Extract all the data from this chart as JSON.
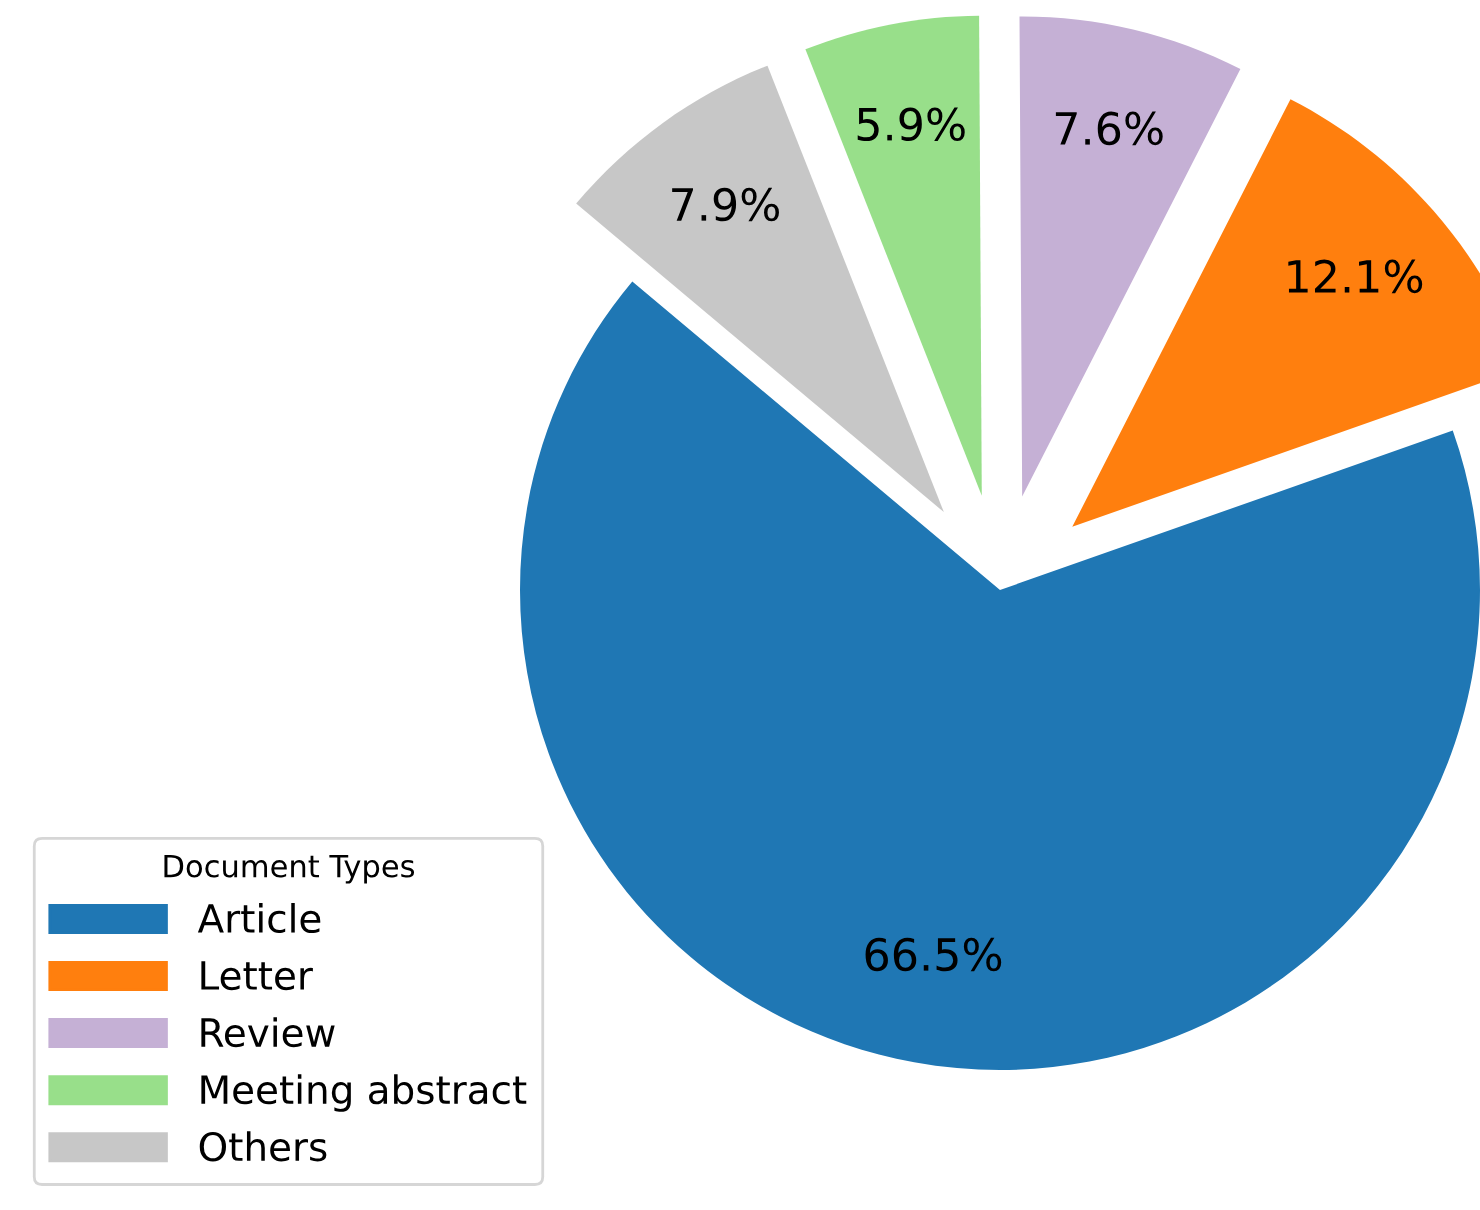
{
  "chart_data": {
    "type": "pie",
    "legend_title": "Document Types",
    "categories": [
      "Article",
      "Letter",
      "Review",
      "Meeting abstract",
      "Others"
    ],
    "values": [
      66.5,
      12.1,
      7.6,
      5.9,
      7.9
    ],
    "value_labels": [
      "66.5%",
      "12.1%",
      "7.6%",
      "5.9%",
      "7.9%"
    ],
    "colors": [
      "#1f77b4",
      "#ff7f0e",
      "#c5b0d5",
      "#98df8a",
      "#c7c7c7"
    ],
    "legend": "bottom left"
  }
}
